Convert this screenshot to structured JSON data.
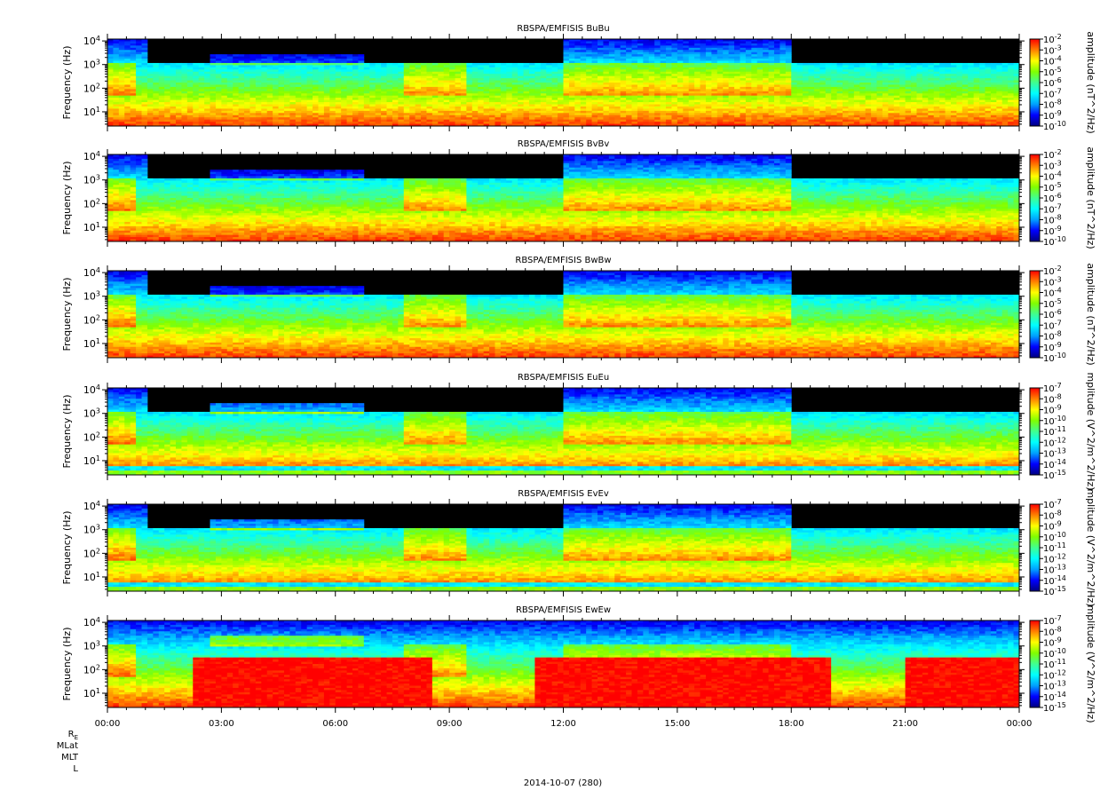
{
  "chart_data": [
    {
      "type": "heatmap",
      "title": "RBSPA/EMFISIS  BuBu",
      "ylabel": "Frequency (Hz)",
      "yscale": "log",
      "ytick_labels": [
        "10^1",
        "10^2",
        "10^3",
        "10^4"
      ],
      "yticks": [
        10,
        100,
        1000,
        10000
      ],
      "ylim": [
        2.5,
        12000
      ],
      "xlim_hours": [
        0,
        24
      ],
      "colorbar": {
        "label": "amplitude (nT^2/Hz)",
        "exp_range": [
          -10,
          -2
        ],
        "tick_labels": [
          "10^-10",
          "10^-9",
          "10^-8",
          "10^-7",
          "10^-6",
          "10^-5",
          "10^-4",
          "10^-3",
          "10^-2"
        ]
      },
      "noise_floor_hz": 0
    },
    {
      "type": "heatmap",
      "title": "RBSPA/EMFISIS  BvBv",
      "ylabel": "Frequency (Hz)",
      "yscale": "log",
      "ytick_labels": [
        "10^1",
        "10^2",
        "10^3",
        "10^4"
      ],
      "yticks": [
        10,
        100,
        1000,
        10000
      ],
      "ylim": [
        2.5,
        12000
      ],
      "xlim_hours": [
        0,
        24
      ],
      "colorbar": {
        "label": "amplitude (nT^2/Hz)",
        "exp_range": [
          -10,
          -2
        ],
        "tick_labels": [
          "10^-10",
          "10^-9",
          "10^-8",
          "10^-7",
          "10^-6",
          "10^-5",
          "10^-4",
          "10^-3",
          "10^-2"
        ]
      },
      "noise_floor_hz": 0
    },
    {
      "type": "heatmap",
      "title": "RBSPA/EMFISIS  BwBw",
      "ylabel": "Frequency (Hz)",
      "yscale": "log",
      "ytick_labels": [
        "10^1",
        "10^2",
        "10^3",
        "10^4"
      ],
      "yticks": [
        10,
        100,
        1000,
        10000
      ],
      "ylim": [
        2.5,
        12000
      ],
      "xlim_hours": [
        0,
        24
      ],
      "colorbar": {
        "label": "amplitude (nT^2/Hz)",
        "exp_range": [
          -10,
          -2
        ],
        "tick_labels": [
          "10^-10",
          "10^-9",
          "10^-8",
          "10^-7",
          "10^-6",
          "10^-5",
          "10^-4",
          "10^-3",
          "10^-2"
        ]
      },
      "noise_floor_hz": 0
    },
    {
      "type": "heatmap",
      "title": "RBSPA/EMFISIS  EuEu",
      "ylabel": "Frequency (Hz)",
      "yscale": "log",
      "ytick_labels": [
        "10^1",
        "10^2",
        "10^3",
        "10^4"
      ],
      "yticks": [
        10,
        100,
        1000,
        10000
      ],
      "ylim": [
        2.5,
        12000
      ],
      "xlim_hours": [
        0,
        24
      ],
      "colorbar": {
        "label": "mplitude (V^2/m^2/Hz)",
        "exp_range": [
          -15,
          -7
        ],
        "tick_labels": [
          "10^-15",
          "10^-14",
          "10^-13",
          "10^-12",
          "10^-11",
          "10^-10",
          "10^-9",
          "10^-8",
          "10^-7"
        ]
      },
      "noise_floor_hz": 6
    },
    {
      "type": "heatmap",
      "title": "RBSPA/EMFISIS  EvEv",
      "ylabel": "Frequency (Hz)",
      "yscale": "log",
      "ytick_labels": [
        "10^1",
        "10^2",
        "10^3",
        "10^4"
      ],
      "yticks": [
        10,
        100,
        1000,
        10000
      ],
      "ylim": [
        2.5,
        12000
      ],
      "xlim_hours": [
        0,
        24
      ],
      "colorbar": {
        "label": "mplitude (V^2/m^2/Hz)",
        "exp_range": [
          -15,
          -7
        ],
        "tick_labels": [
          "10^-15",
          "10^-14",
          "10^-13",
          "10^-12",
          "10^-11",
          "10^-10",
          "10^-9",
          "10^-8",
          "10^-7"
        ]
      },
      "noise_floor_hz": 6
    },
    {
      "type": "heatmap",
      "title": "RBSPA/EMFISIS  EwEw",
      "ylabel": "Frequency (Hz)",
      "yscale": "log",
      "ytick_labels": [
        "10^1",
        "10^2",
        "10^3",
        "10^4"
      ],
      "yticks": [
        10,
        100,
        1000,
        10000
      ],
      "ylim": [
        2.5,
        12000
      ],
      "xlim_hours": [
        0,
        24
      ],
      "colorbar": {
        "label": "mplitude (V^2/m^2/Hz)",
        "exp_range": [
          -15,
          -7
        ],
        "tick_labels": [
          "10^-15",
          "10^-14",
          "10^-13",
          "10^-12",
          "10^-11",
          "10^-10",
          "10^-9",
          "10^-8",
          "10^-7"
        ]
      },
      "noise_floor_hz": 0
    }
  ],
  "x_axis": {
    "tick_hours": [
      0,
      3,
      6,
      9,
      12,
      15,
      18,
      21,
      24
    ],
    "tick_labels": [
      "00:00",
      "03:00",
      "06:00",
      "09:00",
      "12:00",
      "15:00",
      "18:00",
      "21:00",
      "00:00"
    ]
  },
  "ephemeris_labels": [
    "R",
    "MLat",
    "MLT",
    "L"
  ],
  "ephemeris_r_subscript": "E",
  "footer_date": "2014-10-07 (280)",
  "colors": {
    "colormap": [
      "#000080",
      "#0000ff",
      "#00a0ff",
      "#00ffff",
      "#40ff90",
      "#80ff00",
      "#ffff00",
      "#ff8000",
      "#ff0000"
    ],
    "background": "#000000"
  }
}
